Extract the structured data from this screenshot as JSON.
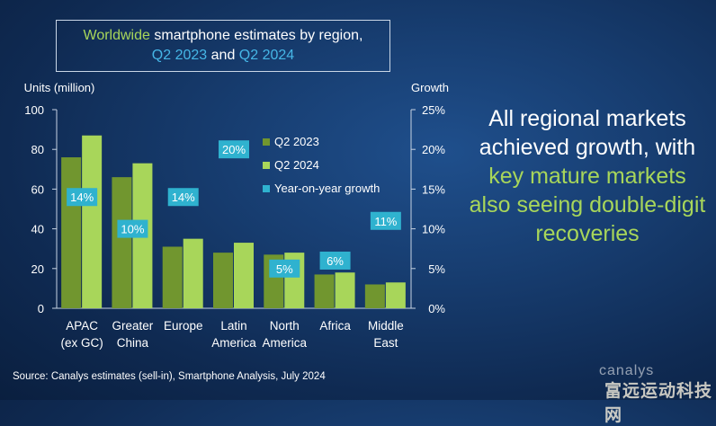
{
  "title": {
    "part1": "Worldwide",
    "part2": "smartphone estimates by region,",
    "part3": "Q2 2023",
    "part4": "and",
    "part5": "Q2 2024"
  },
  "headline": {
    "line1": "All regional markets",
    "line2": "achieved growth, with",
    "line3": "key mature markets",
    "line4": "also seeing double-digit",
    "line5": "recoveries"
  },
  "source": "Source: Canalys estimates (sell-in), Smartphone Analysis, July 2024",
  "watermark": "canalys",
  "watermark_cn": "富远运动科技网",
  "colors": {
    "q2_2023": "#71962f",
    "q2_2024": "#a8d65a",
    "growth": "#2fb2cf"
  },
  "chart_data": {
    "type": "bar",
    "ylabel": "Units (million)",
    "y2label": "Growth",
    "ylim": [
      0,
      100
    ],
    "y2lim": [
      0,
      25
    ],
    "yticks": [
      "0",
      "20",
      "40",
      "60",
      "80",
      "100"
    ],
    "y2ticks": [
      "0%",
      "5%",
      "10%",
      "15%",
      "20%",
      "25%"
    ],
    "categories": [
      [
        "APAC",
        "(ex GC)"
      ],
      [
        "Greater",
        "China"
      ],
      [
        "Europe"
      ],
      [
        "Latin",
        "America"
      ],
      [
        "North",
        "America"
      ],
      [
        "Africa"
      ],
      [
        "Middle",
        "East"
      ]
    ],
    "series": [
      {
        "name": "Q2 2023",
        "values": [
          76,
          66,
          31,
          28,
          27,
          17,
          12
        ]
      },
      {
        "name": "Q2 2024",
        "values": [
          87,
          73,
          35,
          33,
          28,
          18,
          13
        ]
      }
    ],
    "growth": {
      "name": "Year-on-year growth",
      "labels": [
        "14%",
        "10%",
        "14%",
        "20%",
        "5%",
        "6%",
        "11%"
      ],
      "values": [
        14,
        10,
        14,
        20,
        5,
        6,
        11
      ]
    }
  }
}
